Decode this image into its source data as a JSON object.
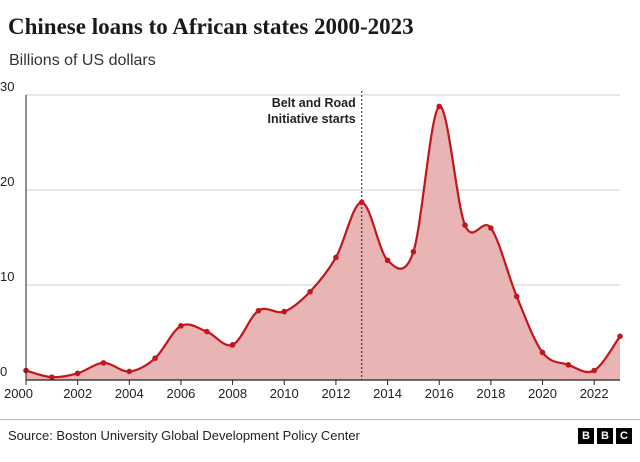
{
  "header": {
    "title": "Chinese loans to African states 2000-2023",
    "subtitle": "Billions of US dollars"
  },
  "footer": {
    "source": "Source: Boston University Global Development Policy Center",
    "logo_letters": [
      "B",
      "B",
      "C"
    ]
  },
  "colors": {
    "line": "#c0161c",
    "fill": "#e8b4b4",
    "grid": "#cfcfcf",
    "axis": "#222222"
  },
  "chart_data": {
    "type": "area",
    "title": "Chinese loans to African states 2000-2023",
    "ylabel": "Billions of US dollars",
    "xlabel": "",
    "x": [
      2000,
      2001,
      2002,
      2003,
      2004,
      2005,
      2006,
      2007,
      2008,
      2009,
      2010,
      2011,
      2012,
      2013,
      2014,
      2015,
      2016,
      2017,
      2018,
      2019,
      2020,
      2021,
      2022,
      2023
    ],
    "series": [
      {
        "name": "Chinese loans to African states",
        "values": [
          1.0,
          0.3,
          0.7,
          1.8,
          0.9,
          2.3,
          5.7,
          5.1,
          3.7,
          7.3,
          7.2,
          9.3,
          12.9,
          18.7,
          12.6,
          13.5,
          28.8,
          16.3,
          16.0,
          8.8,
          2.9,
          1.6,
          1.0,
          4.6
        ]
      }
    ],
    "xlim": [
      2000,
      2023
    ],
    "ylim": [
      0,
      30
    ],
    "yticks": [
      0,
      10,
      20,
      30
    ],
    "xticks": [
      2000,
      2002,
      2004,
      2006,
      2008,
      2010,
      2012,
      2014,
      2016,
      2018,
      2020,
      2022
    ],
    "grid": true,
    "annotations": [
      {
        "x": 2013,
        "lines": [
          "Belt and Road",
          "Initiative starts"
        ]
      }
    ]
  }
}
